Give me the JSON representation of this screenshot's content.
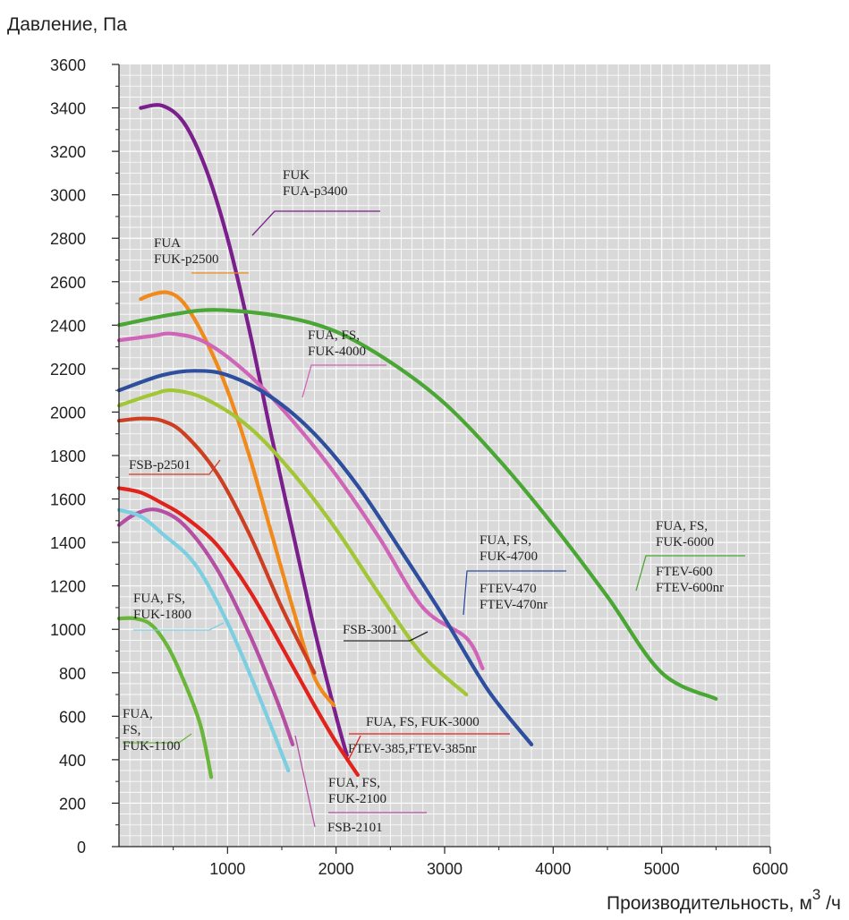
{
  "chart_data": {
    "type": "line",
    "ylabel": "Давление, Па",
    "xlabel": "Производительность, м",
    "xlabel_sup": "3",
    "xlabel_suffix": " /ч",
    "xlim": [
      0,
      6000
    ],
    "ylim": [
      0,
      3600
    ],
    "x_ticks": [
      1000,
      2000,
      3000,
      4000,
      5000,
      6000
    ],
    "y_ticks": [
      0,
      200,
      400,
      600,
      800,
      1000,
      1200,
      1400,
      1600,
      1800,
      2000,
      2200,
      2400,
      2600,
      2800,
      3000,
      3200,
      3400,
      3600
    ],
    "grid": true,
    "series": [
      {
        "name": "FUK / FUA-p3400",
        "color": "#7b1f8c",
        "x": [
          200,
          400,
          600,
          800,
          1000,
          1200,
          1400,
          1600,
          1800,
          2000,
          2100
        ],
        "y": [
          3400,
          3410,
          3330,
          3120,
          2800,
          2380,
          1900,
          1450,
          1000,
          600,
          420
        ]
      },
      {
        "name": "FUA / FUK-p2500",
        "color": "#f08a1c",
        "x": [
          200,
          300,
          450,
          600,
          800,
          1000,
          1200,
          1400,
          1600,
          1800,
          1980
        ],
        "y": [
          2520,
          2540,
          2550,
          2500,
          2330,
          2100,
          1800,
          1450,
          1100,
          780,
          650
        ]
      },
      {
        "name": "FUA, FS, FUK-6000 / FTEV-600 / FTEV-600nr",
        "color": "#4aa635",
        "x": [
          0,
          500,
          900,
          1500,
          2000,
          2500,
          3000,
          3500,
          4000,
          4500,
          5000,
          5500
        ],
        "y": [
          2400,
          2450,
          2470,
          2440,
          2370,
          2230,
          2040,
          1780,
          1480,
          1150,
          800,
          680
        ]
      },
      {
        "name": "FUA, FS, FUK-4000",
        "color": "#d065b8",
        "x": [
          0,
          300,
          500,
          800,
          1200,
          1600,
          2000,
          2400,
          2800,
          3200,
          3350
        ],
        "y": [
          2330,
          2350,
          2360,
          2320,
          2170,
          1960,
          1710,
          1420,
          1100,
          960,
          820
        ]
      },
      {
        "name": "FUA, FS, FUK-4700 / FTEV-470 / FTEV-470nr",
        "color": "#2e4e9e",
        "x": [
          0,
          400,
          700,
          1000,
          1400,
          1800,
          2200,
          2600,
          3000,
          3400,
          3800
        ],
        "y": [
          2100,
          2170,
          2190,
          2170,
          2070,
          1900,
          1660,
          1360,
          1050,
          720,
          470
        ]
      },
      {
        "name": "FSB-3001",
        "color": "#a3c636",
        "x": [
          0,
          300,
          500,
          800,
          1200,
          1600,
          2000,
          2400,
          2800,
          3200
        ],
        "y": [
          2030,
          2080,
          2100,
          2060,
          1930,
          1720,
          1460,
          1160,
          880,
          700
        ]
      },
      {
        "name": "FSB-p2501",
        "color": "#cc3f23",
        "x": [
          0,
          200,
          400,
          600,
          900,
          1200,
          1500,
          1800
        ],
        "y": [
          1960,
          1970,
          1960,
          1900,
          1720,
          1440,
          1100,
          800
        ]
      },
      {
        "name": "FUA, FS, FUK-3000 / FTEV-385, FTEV-385nr",
        "color": "#e0241d",
        "x": [
          0,
          200,
          400,
          600,
          900,
          1200,
          1500,
          1800,
          2000,
          2200
        ],
        "y": [
          1650,
          1630,
          1580,
          1520,
          1390,
          1180,
          920,
          650,
          480,
          330
        ]
      },
      {
        "name": "FUA, FS, FUK-2100 / FSB-2101",
        "color": "#b44fa3",
        "x": [
          0,
          150,
          350,
          600,
          900,
          1200,
          1450,
          1600
        ],
        "y": [
          1480,
          1530,
          1550,
          1480,
          1280,
          980,
          680,
          470
        ]
      },
      {
        "name": "FUA, FS, FUK-1800",
        "color": "#7ccfe0",
        "x": [
          0,
          200,
          400,
          700,
          1000,
          1300,
          1560
        ],
        "y": [
          1550,
          1520,
          1440,
          1300,
          1030,
          680,
          350
        ]
      },
      {
        "name": "FUA, FS, FUK-1100",
        "color": "#6ab63a",
        "x": [
          0,
          150,
          300,
          450,
          600,
          750,
          850
        ],
        "y": [
          1050,
          1050,
          1020,
          920,
          760,
          560,
          320
        ]
      }
    ],
    "annotations": [
      {
        "lines": [
          "FUK",
          "FUA-p3400"
        ],
        "color": "#7b1f8c"
      },
      {
        "lines": [
          "FUA",
          "FUK-p2500"
        ],
        "color": "#f08a1c"
      },
      {
        "lines": [
          "FUA, FS,",
          "FUK-4000"
        ],
        "color": "#d065b8"
      },
      {
        "lines": [
          "FUA, FS,",
          "FUK-6000"
        ],
        "color": "#4aa635"
      },
      {
        "lines": [
          "FTEV-600",
          "FTEV-600nr"
        ],
        "color": "#4aa635"
      },
      {
        "lines": [
          "FUA, FS,",
          "FUK-4700"
        ],
        "color": "#2e4e9e"
      },
      {
        "lines": [
          "FTEV-470",
          "FTEV-470nr"
        ],
        "color": "#2e4e9e"
      },
      {
        "lines": [
          "FSB-p2501"
        ],
        "color": "#cc3f23"
      },
      {
        "lines": [
          "FSB-3001"
        ],
        "color": "#222222"
      },
      {
        "lines": [
          "FUA, FS,",
          "FUK-1800"
        ],
        "color": "#7ccfe0"
      },
      {
        "lines": [
          "FUA,",
          "FS,",
          "FUK-1100"
        ],
        "color": "#6ab63a"
      },
      {
        "lines": [
          "FUA, FS, FUK-3000"
        ],
        "color": "#e0241d"
      },
      {
        "lines": [
          "FTEV-385,FTEV-385nr"
        ],
        "color": "#e0241d"
      },
      {
        "lines": [
          "FUA, FS,",
          "FUK-2100"
        ],
        "color": "#b44fa3"
      },
      {
        "lines": [
          "FSB-2101"
        ],
        "color": "#b44fa3"
      }
    ]
  }
}
